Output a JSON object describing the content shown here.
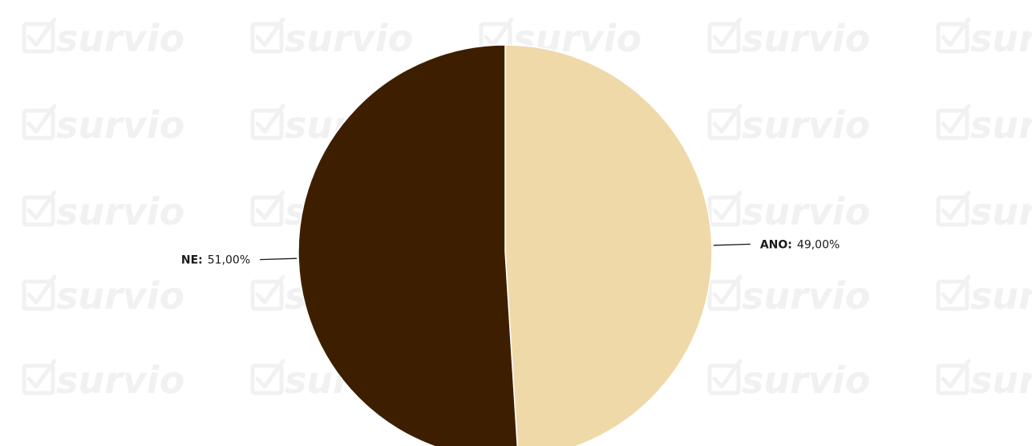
{
  "watermark": {
    "text": "survio",
    "icon": "checkbox-check-icon"
  },
  "chart_data": {
    "type": "pie",
    "title": "",
    "slices": [
      {
        "label": "ANO",
        "value": 49.0,
        "display": "49,00%",
        "color": "#efd9a9"
      },
      {
        "label": "NE",
        "value": 51.0,
        "display": "51,00%",
        "color": "#3d1f00"
      }
    ],
    "start_angle": "12 o'clock",
    "direction": "clockwise",
    "legend": "none",
    "label_style": "outside with leader lines"
  }
}
